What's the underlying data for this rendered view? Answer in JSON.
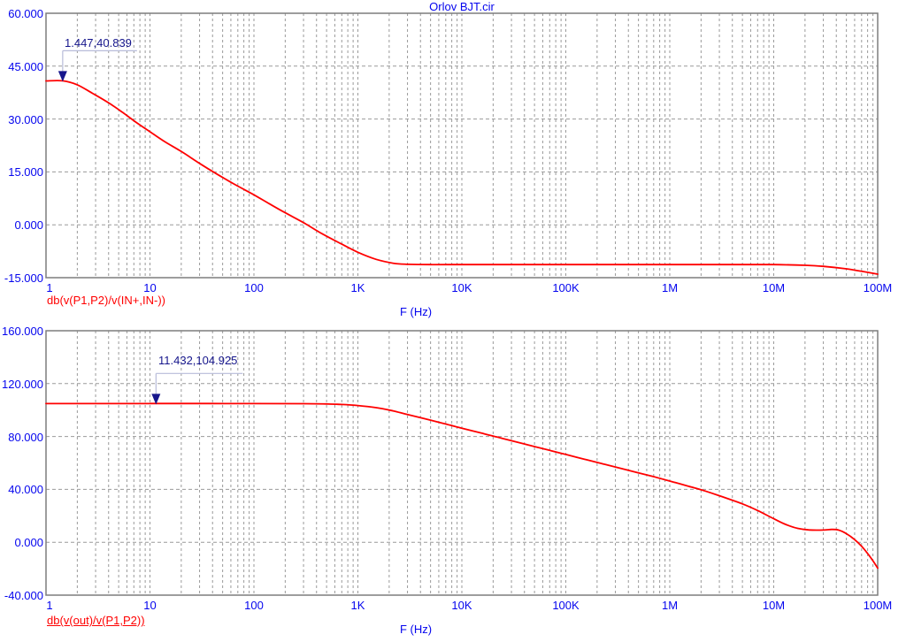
{
  "window_title": "Orlov BJT.cir",
  "colors": {
    "background": "#ffffff",
    "axis_text_blue": "#0505ee",
    "curve_red": "#ff0000",
    "grid_gray": "#9a9a9a",
    "border_gray": "#7d7d7d",
    "annotation_navy": "#16168c",
    "callout_lavender": "#b7bcd9"
  },
  "chart_data": [
    {
      "type": "line",
      "title": "Orlov BJT.cir",
      "curve_label": "db(v(P1,P2)/v(IN+,IN-))",
      "curve_label_underlined": false,
      "xlabel": "F (Hz)",
      "x_scale": "log",
      "xlim": [
        1,
        100000000
      ],
      "ylim": [
        -15,
        60
      ],
      "grid": true,
      "x_ticks": [
        "1",
        "10",
        "100",
        "1K",
        "10K",
        "100K",
        "1M",
        "10M",
        "100M"
      ],
      "y_ticks": [
        "60.000",
        "45.000",
        "30.000",
        "15.000",
        "0.000",
        "-15.000"
      ],
      "y_grid_values": [
        45,
        30,
        15,
        0
      ],
      "annotation": {
        "label": "1.447,40.839",
        "f": 1.447,
        "db": 40.839
      },
      "series": [
        {
          "name": "db(v(P1,P2)/v(IN+,IN-))",
          "color": "#ff0000",
          "points": [
            [
              1,
              40.82
            ],
            [
              1.447,
              40.839
            ],
            [
              2,
              39.7
            ],
            [
              2.8,
              37.3
            ],
            [
              4,
              34.6
            ],
            [
              5.5,
              31.8
            ],
            [
              7.5,
              28.9
            ],
            [
              10,
              26.4
            ],
            [
              14,
              23.5
            ],
            [
              20,
              20.8
            ],
            [
              30,
              17.4
            ],
            [
              44,
              14.4
            ],
            [
              65,
              11.5
            ],
            [
              100,
              8.5
            ],
            [
              140,
              6.0
            ],
            [
              200,
              3.4
            ],
            [
              300,
              0.6
            ],
            [
              450,
              -2.5
            ],
            [
              700,
              -5.5
            ],
            [
              1000,
              -7.8
            ],
            [
              1500,
              -9.8
            ],
            [
              2200,
              -10.9
            ],
            [
              3000,
              -11.2
            ],
            [
              5000,
              -11.3
            ],
            [
              10000,
              -11.3
            ],
            [
              30000,
              -11.3
            ],
            [
              100000,
              -11.3
            ],
            [
              300000,
              -11.3
            ],
            [
              1000000,
              -11.3
            ],
            [
              3000000,
              -11.3
            ],
            [
              10000000,
              -11.3
            ],
            [
              20000000,
              -11.5
            ],
            [
              30000000,
              -11.8
            ],
            [
              50000000,
              -12.5
            ],
            [
              70000000,
              -13.2
            ],
            [
              100000000,
              -14.0
            ]
          ]
        }
      ]
    },
    {
      "type": "line",
      "title": "",
      "curve_label": "db(v(out)/v(P1,P2))",
      "curve_label_underlined": true,
      "xlabel": "F (Hz)",
      "x_scale": "log",
      "xlim": [
        1,
        100000000
      ],
      "ylim": [
        -40,
        160
      ],
      "grid": true,
      "x_ticks": [
        "1",
        "10",
        "100",
        "1K",
        "10K",
        "100K",
        "1M",
        "10M",
        "100M"
      ],
      "y_ticks": [
        "160.000",
        "120.000",
        "80.000",
        "40.000",
        "0.000",
        "-40.000"
      ],
      "y_grid_values": [
        120,
        80,
        40,
        0
      ],
      "annotation": {
        "label": "11.432,104.925",
        "f": 11.432,
        "db": 104.925
      },
      "series": [
        {
          "name": "db(v(out)/v(P1,P2))",
          "color": "#ff0000",
          "points": [
            [
              1,
              104.9
            ],
            [
              10,
              104.9
            ],
            [
              11.432,
              104.925
            ],
            [
              100,
              104.9
            ],
            [
              300,
              104.8
            ],
            [
              500,
              104.6
            ],
            [
              700,
              104.2
            ],
            [
              1000,
              103.4
            ],
            [
              1500,
              101.8
            ],
            [
              2200,
              99.3
            ],
            [
              3000,
              96.6
            ],
            [
              5000,
              92.4
            ],
            [
              7000,
              89.4
            ],
            [
              10000,
              86.3
            ],
            [
              15000,
              82.8
            ],
            [
              22000,
              79.5
            ],
            [
              30000,
              76.8
            ],
            [
              50000,
              72.4
            ],
            [
              70000,
              69.5
            ],
            [
              100000,
              66.4
            ],
            [
              150000,
              62.9
            ],
            [
              220000,
              59.6
            ],
            [
              300000,
              56.9
            ],
            [
              500000,
              52.5
            ],
            [
              700000,
              49.6
            ],
            [
              1000000,
              46.3
            ],
            [
              1500000,
              42.5
            ],
            [
              2200000,
              38.7
            ],
            [
              3000000,
              35.2
            ],
            [
              5000000,
              29.0
            ],
            [
              7000000,
              24.0
            ],
            [
              10000000,
              17.8
            ],
            [
              13000000,
              13.5
            ],
            [
              17000000,
              10.5
            ],
            [
              22000000,
              9.3
            ],
            [
              30000000,
              9.2
            ],
            [
              36000000,
              9.7
            ],
            [
              42000000,
              9.2
            ],
            [
              50000000,
              6.5
            ],
            [
              60000000,
              2.0
            ],
            [
              70000000,
              -3.0
            ],
            [
              80000000,
              -8.5
            ],
            [
              90000000,
              -14.0
            ],
            [
              100000000,
              -19.5
            ]
          ]
        }
      ]
    }
  ]
}
